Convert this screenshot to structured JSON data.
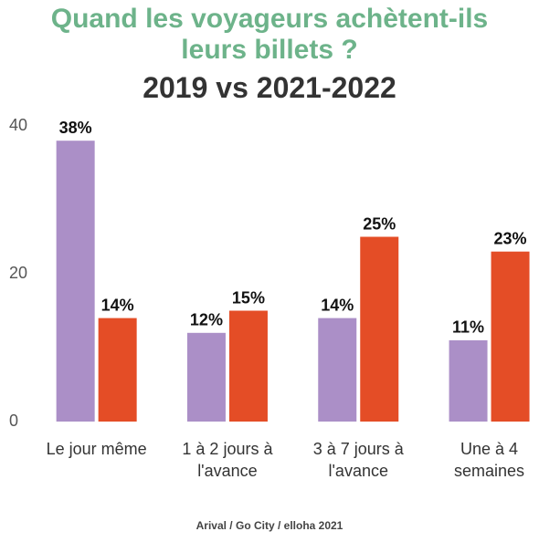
{
  "chart_data": {
    "type": "bar",
    "title": "Quand les voyageurs achètent-ils leurs billets ?",
    "subtitle": "2019 vs 2021-2022",
    "source": "Arival / Go City / elloha 2021",
    "categories": [
      "Le jour même",
      "1 à 2 jours à l'avance",
      "3 à 7 jours à l'avance",
      "Une à 4 semaines"
    ],
    "series": [
      {
        "color": "#ab8fc7",
        "values": [
          38,
          12,
          14,
          11
        ],
        "value_labels": [
          "38%",
          "12%",
          "14%",
          "11%"
        ]
      },
      {
        "color": "#e44d26",
        "values": [
          14,
          15,
          25,
          23
        ],
        "value_labels": [
          "14%",
          "15%",
          "25%",
          "23%"
        ]
      }
    ],
    "ylim": [
      0,
      40
    ],
    "yticks": [
      0,
      20,
      40
    ],
    "grid": false
  }
}
